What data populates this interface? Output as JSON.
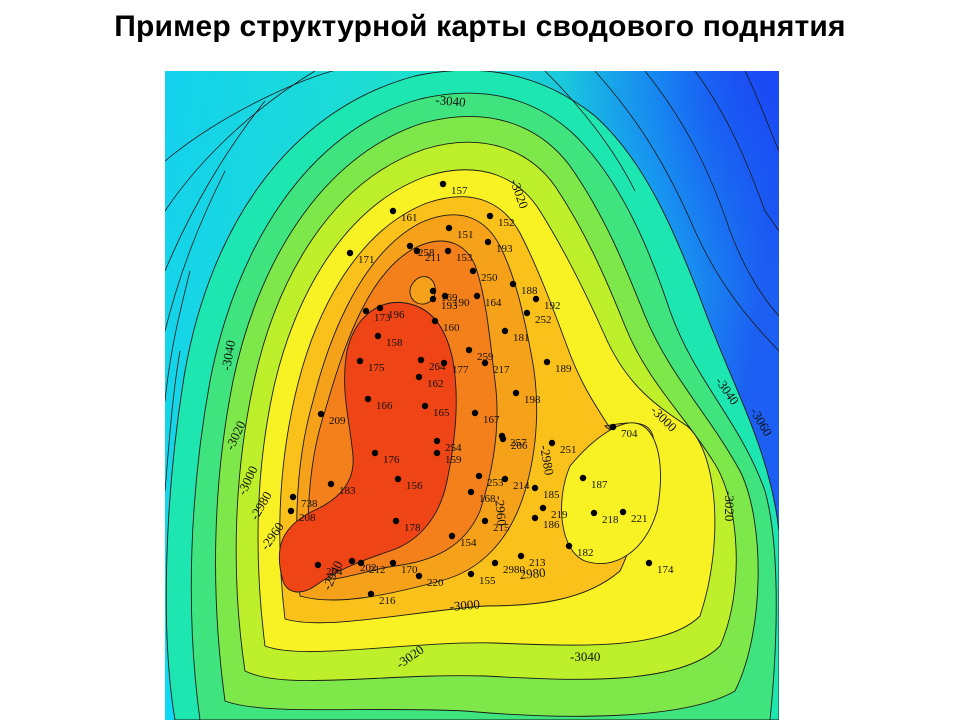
{
  "slide": {
    "title": "Пример структурной карты сводового поднятия"
  },
  "map": {
    "type": "structural contour map",
    "colors": {
      "deepest": "#1e5ef0",
      "deep": "#12c8ee",
      "mid_deep": "#18e2b2",
      "mid": "#5ae86a",
      "mid_high": "#b6ee2c",
      "high": "#f8f21e",
      "higher": "#f7ba16",
      "crest": "#f38a14",
      "top": "#f04d13"
    },
    "contour_labels": [
      {
        "id": "c1",
        "text": "-3040"
      },
      {
        "id": "c2",
        "text": "-3020"
      },
      {
        "id": "c3",
        "text": "-3040"
      },
      {
        "id": "c4",
        "text": "-3020"
      },
      {
        "id": "c5",
        "text": "-3000"
      },
      {
        "id": "c6",
        "text": "-2980"
      },
      {
        "id": "c7",
        "text": "-2960"
      },
      {
        "id": "c8",
        "text": "-2940"
      },
      {
        "id": "c9",
        "text": "-3000"
      },
      {
        "id": "c10",
        "text": "-3040"
      },
      {
        "id": "c11",
        "text": "-3060"
      },
      {
        "id": "c12",
        "text": "-3020"
      },
      {
        "id": "c13",
        "text": "-2980"
      },
      {
        "id": "c14",
        "text": "-2960"
      },
      {
        "id": "c15",
        "text": "2980"
      },
      {
        "id": "c16",
        "text": "-3000"
      },
      {
        "id": "c17",
        "text": "-3020"
      },
      {
        "id": "c18",
        "text": "-3040"
      }
    ],
    "wells": [
      "157",
      "161",
      "152",
      "151",
      "193",
      "171",
      "258",
      "211",
      "153",
      "250",
      "188",
      "169",
      "190",
      "193",
      "164",
      "192",
      "173",
      "196",
      "252",
      "160",
      "181",
      "158",
      "175",
      "259",
      "264",
      "177",
      "217",
      "189",
      "162",
      "198",
      "209",
      "166",
      "165",
      "167",
      "704",
      "254",
      "257",
      "206",
      "251",
      "176",
      "159",
      "738",
      "183",
      "156",
      "253",
      "214",
      "187",
      "185",
      "168",
      "208",
      "219",
      "218",
      "221",
      "178",
      "215",
      "186",
      "154",
      "182",
      "213",
      "202",
      "204",
      "212",
      "170",
      "2980",
      "174",
      "220",
      "155",
      "216"
    ]
  }
}
